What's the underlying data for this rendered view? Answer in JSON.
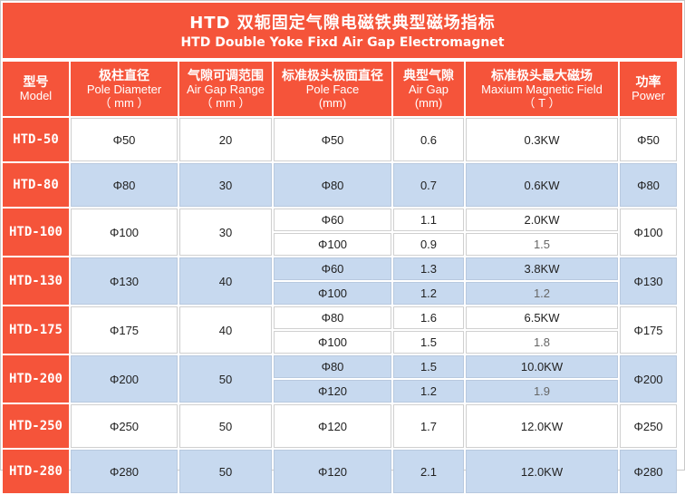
{
  "title": {
    "zh": "HTD 双轭固定气隙电磁铁典型磁场指标",
    "en": "HTD Double Yoke Fixd  Air Gap Electromagnet"
  },
  "headers": [
    {
      "l1": "型号",
      "l2": "Model",
      "l3": ""
    },
    {
      "l1": "极柱直径",
      "l2": "Pole Diameter",
      "l3": "（ mm ）"
    },
    {
      "l1": "气隙可调范围",
      "l2": "Air Gap Range",
      "l3": "（ mm ）"
    },
    {
      "l1": "标准极头极面直径",
      "l2": "Pole Face",
      "l3": "(mm)"
    },
    {
      "l1": "典型气隙",
      "l2": "Air Gap",
      "l3": "(mm)"
    },
    {
      "l1": "标准极头最大磁场",
      "l2": "Maxium Magnetic Field",
      "l3": "（ T ）"
    },
    {
      "l1": "功率",
      "l2": "Power",
      "l3": ""
    }
  ],
  "rows": [
    {
      "model": "HTD-50",
      "pole": "Φ50",
      "range": "20",
      "face": [
        "Φ50"
      ],
      "gap": [
        "0.6"
      ],
      "field": [
        "0.3KW"
      ],
      "power": "Φ50"
    },
    {
      "model": "HTD-80",
      "pole": "Φ80",
      "range": "30",
      "face": [
        "Φ80"
      ],
      "gap": [
        "0.7"
      ],
      "field": [
        "0.6KW"
      ],
      "power": "Φ80"
    },
    {
      "model": "HTD-100",
      "pole": "Φ100",
      "range": "30",
      "face": [
        "Φ60",
        "Φ100"
      ],
      "gap": [
        "1.1",
        "0.9"
      ],
      "field": [
        "2.0KW",
        "1.5"
      ],
      "power": "Φ100"
    },
    {
      "model": "HTD-130",
      "pole": "Φ130",
      "range": "40",
      "face": [
        "Φ60",
        "Φ100"
      ],
      "gap": [
        "1.3",
        "1.2"
      ],
      "field": [
        "3.8KW",
        "1.2"
      ],
      "power": "Φ130"
    },
    {
      "model": "HTD-175",
      "pole": "Φ175",
      "range": "40",
      "face": [
        "Φ80",
        "Φ100"
      ],
      "gap": [
        "1.6",
        "1.5"
      ],
      "field": [
        "6.5KW",
        "1.8"
      ],
      "power": "Φ175"
    },
    {
      "model": "HTD-200",
      "pole": "Φ200",
      "range": "50",
      "face": [
        "Φ80",
        "Φ120"
      ],
      "gap": [
        "1.5",
        "1.2"
      ],
      "field": [
        "10.0KW",
        "1.9"
      ],
      "power": "Φ200"
    },
    {
      "model": "HTD-250",
      "pole": "Φ250",
      "range": "50",
      "face": [
        "Φ120"
      ],
      "gap": [
        "1.7"
      ],
      "field": [
        "12.0KW"
      ],
      "power": "Φ250"
    },
    {
      "model": "HTD-280",
      "pole": "Φ280",
      "range": "50",
      "face": [
        "Φ120"
      ],
      "gap": [
        "2.1"
      ],
      "field": [
        "12.0KW"
      ],
      "power": "Φ280"
    }
  ],
  "colors": {
    "header_red": "#f5543a",
    "row_blue": "#c7d9ef",
    "row_white": "#ffffff"
  }
}
